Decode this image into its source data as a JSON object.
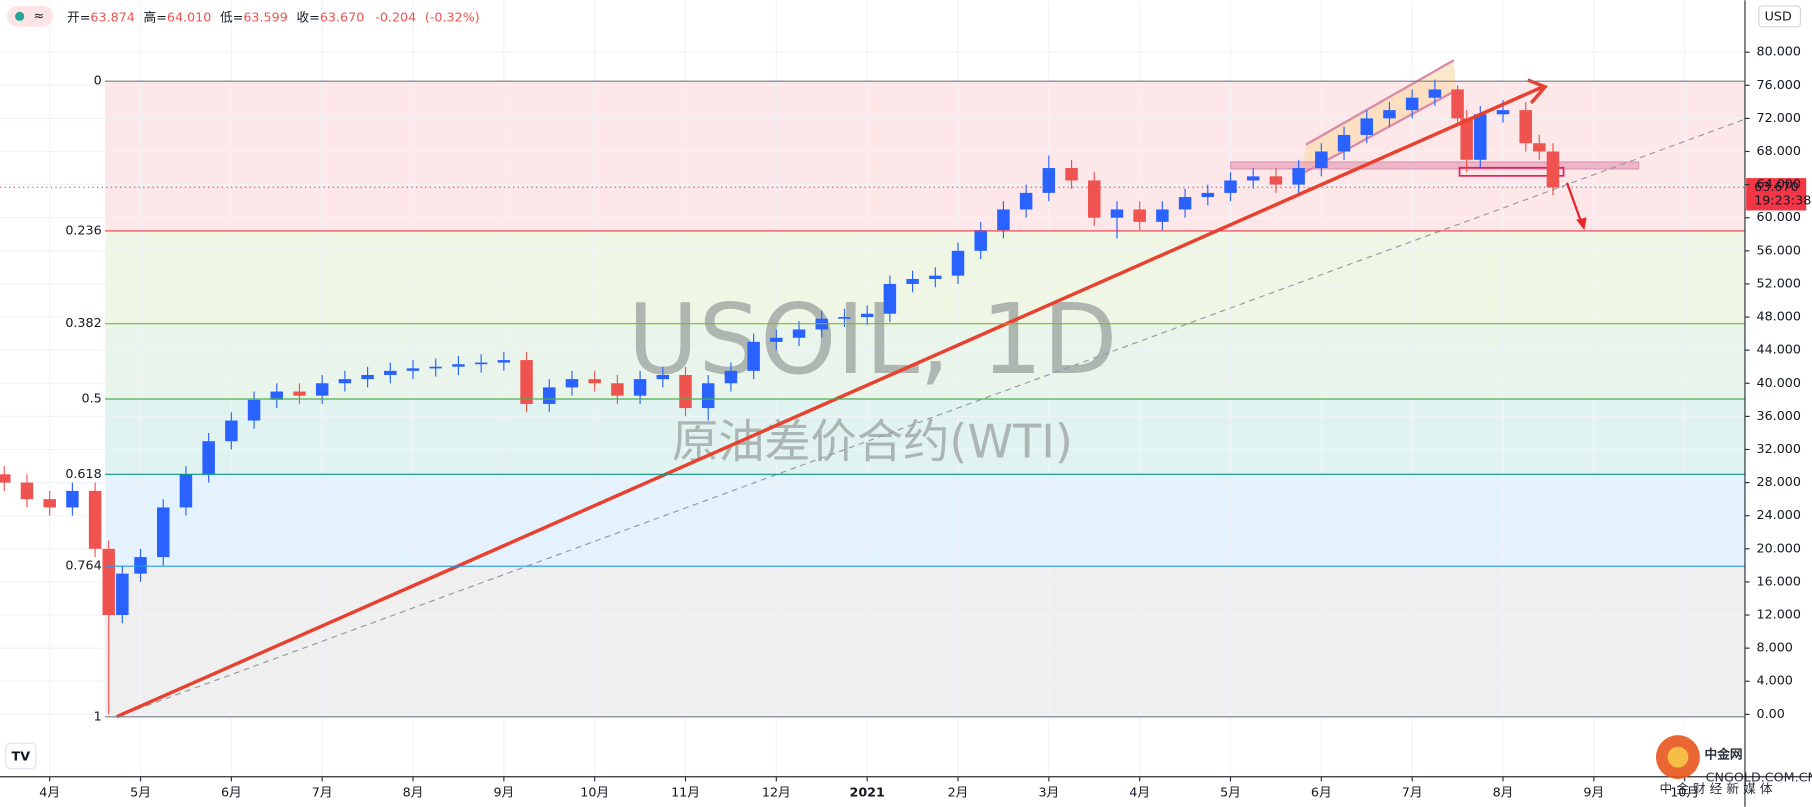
{
  "header": {
    "ohlc_labels": [
      "开=",
      "高=",
      "低=",
      "收="
    ],
    "ohlc_values": [
      "63.874",
      "64.010",
      "63.599",
      "63.670"
    ],
    "change": "-0.204",
    "change_pct": "(-0.32%)",
    "currency": "USD"
  },
  "watermark": {
    "symbol": "USOIL, 1D",
    "name": "原油差价合约(WTI)"
  },
  "logo": {
    "name": "中金网",
    "domain": "CNGOLD.COM.CN",
    "slogan": "中 金 财 经 新 媒 体"
  },
  "chart_data": {
    "type": "candlestick",
    "up_color": "#2962ff",
    "down_color": "#ef5350",
    "grid": true,
    "xlim": [
      -0.547,
      18.664
    ],
    "ylim": [
      -7.54,
      86.28
    ],
    "xticks": [
      {
        "value": 0,
        "label": "4月"
      },
      {
        "value": 1,
        "label": "5月"
      },
      {
        "value": 2,
        "label": "6月"
      },
      {
        "value": 3,
        "label": "7月"
      },
      {
        "value": 4,
        "label": "8月"
      },
      {
        "value": 5,
        "label": "9月"
      },
      {
        "value": 6,
        "label": "10月"
      },
      {
        "value": 7,
        "label": "11月"
      },
      {
        "value": 8,
        "label": "12月"
      },
      {
        "value": 9,
        "label": "2021"
      },
      {
        "value": 10,
        "label": "2月"
      },
      {
        "value": 11,
        "label": "3月"
      },
      {
        "value": 12,
        "label": "4月"
      },
      {
        "value": 13,
        "label": "5月"
      },
      {
        "value": 14,
        "label": "6月"
      },
      {
        "value": 15,
        "label": "7月"
      },
      {
        "value": 16,
        "label": "8月"
      },
      {
        "value": 17,
        "label": "9月"
      },
      {
        "value": 18,
        "label": "10月"
      }
    ],
    "yticks": [
      {
        "value": 0,
        "label": "0.00"
      },
      {
        "value": 4,
        "label": "4.000"
      },
      {
        "value": 8,
        "label": "8.000"
      },
      {
        "value": 12,
        "label": "12.000"
      },
      {
        "value": 16,
        "label": "16.000"
      },
      {
        "value": 20,
        "label": "20.000"
      },
      {
        "value": 24,
        "label": "24.000"
      },
      {
        "value": 28,
        "label": "28.000"
      },
      {
        "value": 32,
        "label": "32.000"
      },
      {
        "value": 36,
        "label": "36.000"
      },
      {
        "value": 40,
        "label": "40.000"
      },
      {
        "value": 44,
        "label": "44.000"
      },
      {
        "value": 48,
        "label": "48.000"
      },
      {
        "value": 52,
        "label": "52.000"
      },
      {
        "value": 56,
        "label": "56.000"
      },
      {
        "value": 60,
        "label": "60.000"
      },
      {
        "value": 64,
        "label": "64.000"
      },
      {
        "value": 68,
        "label": "68.000"
      },
      {
        "value": 72,
        "label": "72.000"
      },
      {
        "value": 76,
        "label": "76.000"
      },
      {
        "value": 80,
        "label": "80.000"
      }
    ],
    "x": [
      -0.5,
      -0.25,
      0,
      0.25,
      0.5,
      0.65,
      0.8,
      1,
      1.25,
      1.5,
      1.75,
      2,
      2.25,
      2.5,
      2.75,
      3,
      3.25,
      3.5,
      3.75,
      4,
      4.25,
      4.5,
      4.75,
      5,
      5.25,
      5.5,
      5.75,
      6,
      6.25,
      6.5,
      6.75,
      7,
      7.25,
      7.5,
      7.75,
      8,
      8.25,
      8.5,
      8.75,
      9,
      9.25,
      9.5,
      9.75,
      10,
      10.25,
      10.5,
      10.75,
      11,
      11.25,
      11.5,
      11.75,
      12,
      12.25,
      12.5,
      12.75,
      13,
      13.25,
      13.5,
      13.75,
      14,
      14.25,
      14.5,
      14.75,
      15,
      15.25,
      15.5,
      15.6,
      15.75,
      16,
      16.25,
      16.4,
      16.55
    ],
    "open": [
      29,
      28,
      26,
      25,
      27,
      20,
      12,
      17,
      19,
      25,
      29,
      33,
      35.5,
      38,
      39,
      38.5,
      40,
      40.5,
      41,
      41.5,
      41.8,
      42,
      42.3,
      42.5,
      42.8,
      37.5,
      39.5,
      40.5,
      40,
      38.5,
      40.5,
      41,
      37,
      40,
      41.5,
      45,
      45.5,
      46.5,
      47.8,
      48,
      48.4,
      52,
      52.6,
      53,
      56,
      58.5,
      61,
      63,
      66,
      64.5,
      60,
      61,
      59.5,
      61,
      62.5,
      63,
      64.5,
      65,
      64,
      66,
      68,
      70,
      72,
      73,
      74.5,
      75.5,
      72,
      67,
      72.5,
      73,
      69,
      68
    ],
    "high": [
      30,
      29,
      27,
      28,
      28,
      21,
      18,
      20,
      26,
      30,
      34,
      36.5,
      39,
      40,
      40,
      41,
      41.5,
      42,
      42.5,
      42.8,
      43,
      43.3,
      43.5,
      43.8,
      43.8,
      40.5,
      41.5,
      41.5,
      41,
      41.5,
      42,
      42,
      41,
      42.5,
      46,
      46.5,
      47.5,
      48.8,
      49,
      49.4,
      53,
      53.6,
      54,
      57,
      59.5,
      62,
      64,
      67.5,
      67,
      65.5,
      62,
      62,
      62,
      63.5,
      64,
      65.5,
      66,
      66,
      67,
      69,
      71,
      73,
      74,
      75.5,
      76.7,
      76,
      73,
      73.5,
      74.2,
      74,
      70,
      69
    ],
    "low": [
      27,
      25,
      24,
      24,
      19,
      0,
      11,
      16,
      18,
      24,
      28,
      32,
      34.5,
      37,
      37.5,
      37.5,
      39,
      39.5,
      40,
      40.5,
      40.8,
      41,
      41.3,
      41.5,
      36.5,
      36.5,
      38.5,
      39,
      37.5,
      37.5,
      39.5,
      36,
      35.5,
      39,
      40.5,
      44,
      44.5,
      45.5,
      46.8,
      47,
      47.4,
      51,
      51.6,
      52,
      55,
      57.5,
      60,
      62,
      63.5,
      59,
      57.5,
      58.5,
      58.5,
      60,
      61.5,
      62,
      63.5,
      63,
      63,
      65,
      67,
      69,
      71,
      72,
      73.5,
      71,
      65.5,
      66,
      71.5,
      68,
      67,
      62.7
    ],
    "close": [
      28,
      26,
      25,
      27,
      20,
      12,
      17,
      19,
      25,
      29,
      33,
      35.5,
      38,
      39,
      38.5,
      40,
      40.5,
      41,
      41.5,
      41.8,
      42,
      42.3,
      42.5,
      42.8,
      37.5,
      39.5,
      40.5,
      40,
      38.5,
      40.5,
      41,
      37,
      40,
      41.5,
      45,
      45.5,
      46.5,
      47.8,
      48,
      48.4,
      52,
      52.6,
      53,
      56,
      58.5,
      61,
      63,
      66,
      64.5,
      60,
      61,
      59.5,
      61,
      62.5,
      63,
      64.5,
      65,
      64,
      66,
      68,
      70,
      72,
      73,
      74.5,
      75.5,
      72,
      67,
      72.5,
      73,
      69,
      68,
      63.67
    ],
    "last_price": {
      "value": 63.67,
      "label": "63.670"
    },
    "countdown": "19:23:38",
    "fib": {
      "levels": [
        0,
        0.236,
        0.382,
        0.5,
        0.618,
        0.764,
        1
      ],
      "prices": [
        76.5,
        58.4,
        47.2,
        38.1,
        29.0,
        17.9,
        -0.3
      ],
      "colors": [
        "#787b86",
        "#f23645",
        "#81b81f",
        "#4caf50",
        "#089981",
        "#2196f3",
        "#787b86"
      ]
    }
  }
}
